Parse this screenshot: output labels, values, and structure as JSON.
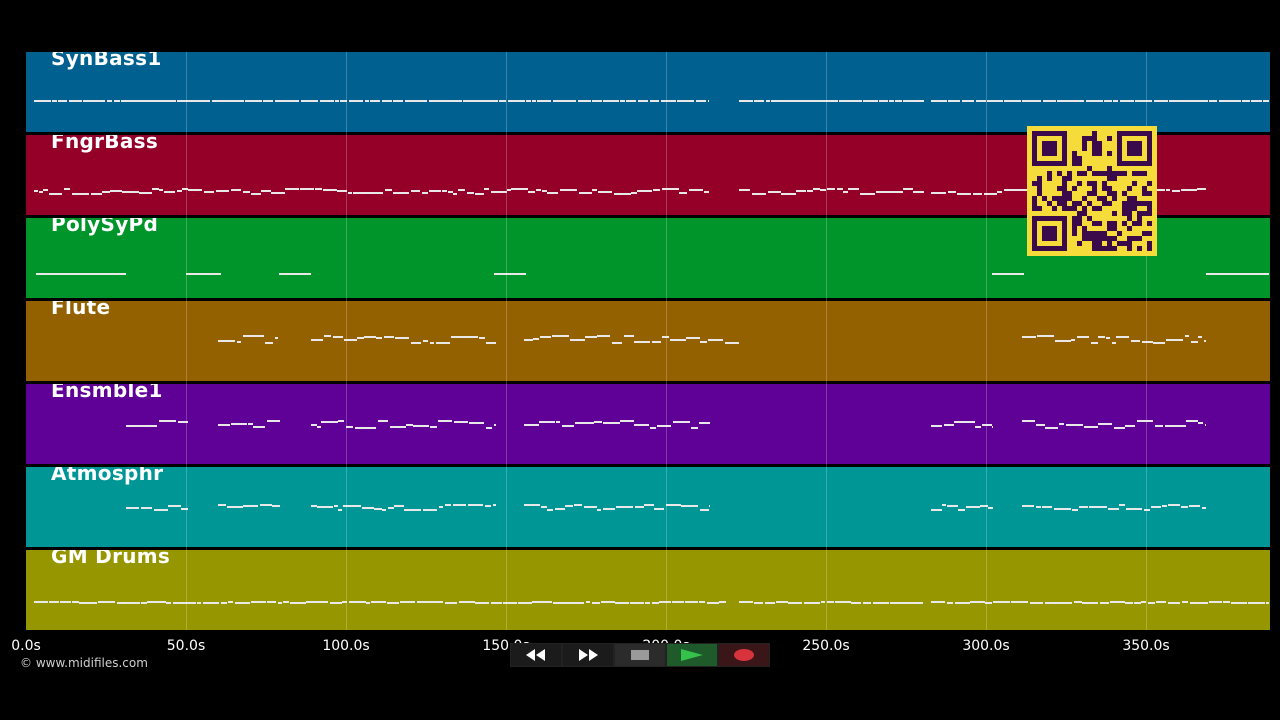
{
  "tracks": [
    {
      "name": "SynBass1",
      "color": "#00608f"
    },
    {
      "name": "FngrBass",
      "color": "#950028"
    },
    {
      "name": "PolySyPd",
      "color": "#00952a"
    },
    {
      "name": "Flute",
      "color": "#946100"
    },
    {
      "name": "Ensmble1",
      "color": "#5f0096"
    },
    {
      "name": "Atmosphr",
      "color": "#009696"
    },
    {
      "name": "GM Drums",
      "color": "#969600"
    }
  ],
  "timeline": {
    "ticks": [
      "0.0s",
      "50.0s",
      "100.0s",
      "150.0s",
      "200.0s",
      "250.0s",
      "300.0s",
      "350.0s"
    ]
  },
  "copyright": "© www.midifiles.com",
  "transport": {
    "buttons": [
      "rewind",
      "fast-forward",
      "stop",
      "play",
      "record"
    ],
    "colors": {
      "stop": "#9a9a9a",
      "play": "#34c24a",
      "record": "#d8323c"
    }
  },
  "qr_code": {
    "background": "#f6dc3a",
    "foreground": "#3a0a4a"
  }
}
